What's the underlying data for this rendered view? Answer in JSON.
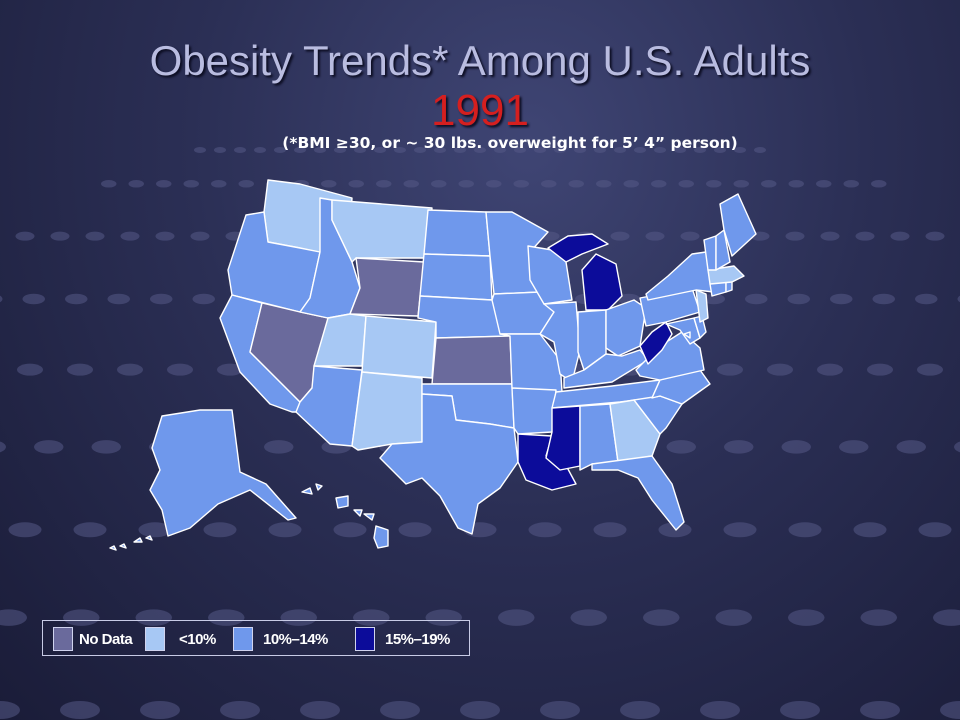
{
  "slide": {
    "title": "Obesity Trends* Among U.S. Adults",
    "year": "1991",
    "subtitle": "(*BMI ≥30, or ~ 30 lbs. overweight for 5’ 4” person)"
  },
  "colors": {
    "no_data": "#6a6a9c",
    "lt10": "#a7c8f4",
    "p10_14": "#6f98ec",
    "p15_19": "#0c0c9a"
  },
  "legend": [
    {
      "label": "No Data",
      "category": "no_data"
    },
    {
      "label": "<10%",
      "category": "lt10"
    },
    {
      "label": "10%–14%",
      "category": "p10_14"
    },
    {
      "label": "15%–19%",
      "category": "p15_19"
    }
  ],
  "states": {
    "WA": "lt10",
    "OR": "p10_14",
    "CA": "p10_14",
    "NV": "no_data",
    "ID": "p10_14",
    "MT": "lt10",
    "WY": "no_data",
    "UT": "lt10",
    "CO": "lt10",
    "AZ": "p10_14",
    "NM": "lt10",
    "ND": "p10_14",
    "SD": "p10_14",
    "NE": "p10_14",
    "KS": "no_data",
    "OK": "p10_14",
    "TX": "p10_14",
    "MN": "p10_14",
    "IA": "p10_14",
    "MO": "p10_14",
    "AR": "p10_14",
    "LA": "p15_19",
    "WI": "p10_14",
    "IL": "p10_14",
    "MI": "p15_19",
    "IN": "p10_14",
    "OH": "p10_14",
    "KY": "p10_14",
    "TN": "p10_14",
    "MS": "p15_19",
    "AL": "p10_14",
    "GA": "lt10",
    "FL": "p10_14",
    "SC": "p10_14",
    "NC": "p10_14",
    "VA": "p10_14",
    "WV": "p15_19",
    "MD": "p10_14",
    "DE": "p10_14",
    "PA": "p10_14",
    "NJ": "lt10",
    "NY": "p10_14",
    "CT": "p10_14",
    "RI": "p10_14",
    "MA": "lt10",
    "VT": "p10_14",
    "NH": "p10_14",
    "ME": "p10_14",
    "AK": "p10_14",
    "HI": "p10_14",
    "DC": "p10_14"
  }
}
